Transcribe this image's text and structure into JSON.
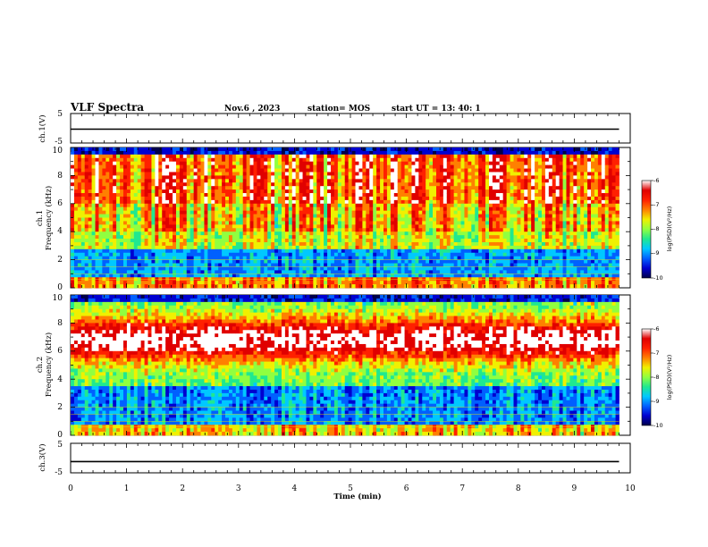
{
  "header": {
    "title": "VLF Spectra",
    "date": "Nov.6  , 2023",
    "station": "station= MOS",
    "start": "start  UT  =  13: 40: 1"
  },
  "chart_data": [
    {
      "type": "line",
      "panel": "ch1-waveform",
      "ylabel": "ch.1(V)",
      "ylim": [
        -5,
        5
      ],
      "yticks": [
        "5",
        "-5"
      ],
      "x": [
        0,
        9.8
      ],
      "series": [
        {
          "values": [
            -0.3,
            -0.3
          ]
        }
      ],
      "xlim": [
        0,
        10
      ]
    },
    {
      "type": "heatmap",
      "panel": "ch1-spectrogram",
      "ylabel": "ch.1\nFrequency (kHz)",
      "ylim": [
        0,
        10
      ],
      "yticks": [
        "0",
        "2",
        "4",
        "6",
        "8",
        "10"
      ],
      "xlim": [
        0,
        10
      ],
      "data_end_min": 9.8,
      "colorbar": {
        "label": "log(PSD)(V²/Hz)",
        "range": [
          -10,
          -6
        ],
        "ticks": [
          "-6",
          "-7",
          "-8",
          "-9",
          "-10"
        ]
      }
    },
    {
      "type": "heatmap",
      "panel": "ch2-spectrogram",
      "ylabel": "ch.2\nFrequency (kHz)",
      "ylim": [
        0,
        10
      ],
      "yticks": [
        "0",
        "2",
        "4",
        "6",
        "8",
        "10"
      ],
      "xlim": [
        0,
        10
      ],
      "data_end_min": 9.8,
      "colorbar": {
        "label": "log(PSD)(V²/Hz)",
        "range": [
          -10,
          -6
        ],
        "ticks": [
          "-6",
          "-7",
          "-8",
          "-9",
          "-10"
        ]
      }
    },
    {
      "type": "line",
      "panel": "ch3-waveform",
      "ylabel": "ch.3(V)",
      "ylim": [
        -5,
        5
      ],
      "yticks": [
        "5",
        "-5"
      ],
      "x": [
        0,
        9.8
      ],
      "series": [
        {
          "values": [
            -1.2,
            -1.2
          ]
        }
      ],
      "xlim": [
        0,
        10
      ],
      "xlabel": "Time  (min)",
      "xticks": [
        "0",
        "1",
        "2",
        "3",
        "4",
        "5",
        "6",
        "7",
        "8",
        "9",
        "10"
      ]
    }
  ],
  "colors": {
    "colormap": [
      "#00004a",
      "#0000d0",
      "#0060ff",
      "#00c8ff",
      "#20e890",
      "#90ff40",
      "#f0f000",
      "#ff8000",
      "#ff2000",
      "#e00000",
      "#ffffff"
    ]
  }
}
